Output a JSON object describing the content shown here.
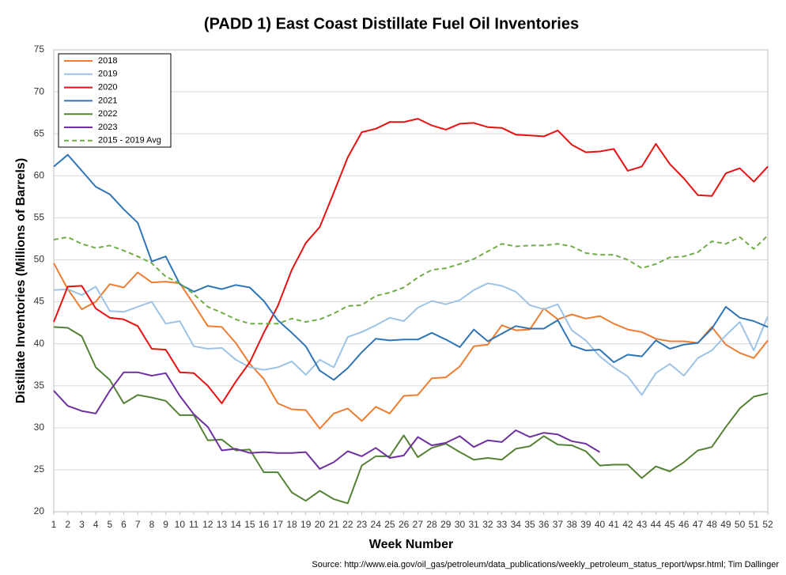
{
  "chart_data": {
    "type": "line",
    "title": "(PADD 1) East Coast Distillate Fuel Oil Inventories",
    "y_label": "Distillate Inventories (Millions of Barrels)",
    "x_label": "Week Number",
    "source": "Source: http://www.eia.gov/oil_gas/petroleum/data_publications/weekly_petroleum_status_report/wpsr.html; Tim Dallinger",
    "x": [
      1,
      2,
      3,
      4,
      5,
      6,
      7,
      8,
      9,
      10,
      11,
      12,
      13,
      14,
      15,
      16,
      17,
      18,
      19,
      20,
      21,
      22,
      23,
      24,
      25,
      26,
      27,
      28,
      29,
      30,
      31,
      32,
      33,
      34,
      35,
      36,
      37,
      38,
      39,
      40,
      41,
      42,
      43,
      44,
      45,
      46,
      47,
      48,
      49,
      50,
      51,
      52
    ],
    "xlim": [
      1,
      52
    ],
    "xticks": [
      1,
      2,
      3,
      4,
      5,
      6,
      7,
      8,
      9,
      10,
      11,
      12,
      13,
      14,
      15,
      16,
      17,
      18,
      19,
      20,
      21,
      22,
      23,
      24,
      25,
      26,
      27,
      28,
      29,
      30,
      31,
      32,
      33,
      34,
      35,
      36,
      37,
      38,
      39,
      40,
      41,
      42,
      43,
      44,
      45,
      46,
      47,
      48,
      49,
      50,
      51,
      52
    ],
    "ylim": [
      20,
      75
    ],
    "yticks": [
      20,
      25,
      30,
      35,
      40,
      45,
      50,
      55,
      60,
      65,
      70,
      75
    ],
    "grid": true,
    "legend": "upper left",
    "series": [
      {
        "name": "2018",
        "color": "#ed7d31",
        "values": [
          49.6,
          46.5,
          44.1,
          45.0,
          47.1,
          46.7,
          48.5,
          47.3,
          47.4,
          47.2,
          44.7,
          42.1,
          42.0,
          40.1,
          37.6,
          35.8,
          32.9,
          32.2,
          32.1,
          29.9,
          31.7,
          32.3,
          30.8,
          32.5,
          31.7,
          33.8,
          33.9,
          35.9,
          36.0,
          37.3,
          39.7,
          39.9,
          42.2,
          41.6,
          41.7,
          44.2,
          42.9,
          43.5,
          43.0,
          43.3,
          42.4,
          41.7,
          41.4,
          40.6,
          40.3,
          40.3,
          40.1,
          42.0,
          39.9,
          38.9,
          38.3,
          40.4
        ]
      },
      {
        "name": "2019",
        "color": "#9dc3e6",
        "values": [
          46.4,
          46.5,
          45.8,
          46.8,
          43.9,
          43.8,
          44.4,
          45.0,
          42.4,
          42.7,
          39.7,
          39.4,
          39.5,
          38.1,
          37.2,
          36.9,
          37.2,
          37.9,
          36.3,
          38.1,
          37.2,
          40.8,
          41.4,
          42.2,
          43.1,
          42.7,
          44.3,
          45.1,
          44.7,
          45.2,
          46.4,
          47.2,
          46.9,
          46.2,
          44.6,
          44.1,
          44.7,
          41.6,
          40.4,
          38.5,
          37.2,
          36.1,
          33.9,
          36.5,
          37.6,
          36.2,
          38.3,
          39.2,
          41.0,
          42.6,
          39.2,
          43.3
        ]
      },
      {
        "name": "2020",
        "color": "#e81010",
        "values": [
          42.6,
          46.8,
          46.9,
          44.2,
          43.1,
          42.9,
          42.1,
          39.4,
          39.3,
          36.6,
          36.5,
          35.0,
          32.9,
          35.5,
          37.8,
          41.3,
          44.5,
          48.8,
          52.0,
          53.9,
          58.0,
          62.2,
          65.2,
          65.6,
          66.4,
          66.4,
          66.8,
          66.0,
          65.5,
          66.2,
          66.3,
          65.8,
          65.7,
          64.9,
          64.8,
          64.7,
          65.4,
          63.7,
          62.8,
          62.9,
          63.2,
          60.6,
          61.1,
          63.8,
          61.4,
          59.7,
          57.7,
          57.6,
          60.3,
          60.9,
          59.3,
          61.1
        ]
      },
      {
        "name": "2021",
        "color": "#2e75b6",
        "values": [
          61.1,
          62.5,
          60.6,
          58.7,
          57.8,
          56.0,
          54.4,
          49.8,
          50.4,
          47.1,
          46.2,
          46.9,
          46.5,
          47.0,
          46.7,
          45.1,
          42.8,
          41.3,
          39.7,
          36.8,
          35.7,
          37.1,
          39.0,
          40.6,
          40.4,
          40.5,
          40.5,
          41.3,
          40.5,
          39.6,
          41.7,
          40.3,
          41.2,
          42.1,
          41.8,
          41.8,
          42.8,
          39.8,
          39.2,
          39.3,
          37.8,
          38.7,
          38.5,
          40.4,
          39.4,
          39.9,
          40.1,
          41.8,
          44.4,
          43.1,
          42.7,
          42.0
        ]
      },
      {
        "name": "2022",
        "color": "#548235",
        "values": [
          42.0,
          41.9,
          40.9,
          37.2,
          35.7,
          32.9,
          33.9,
          33.6,
          33.2,
          31.5,
          31.5,
          28.5,
          28.6,
          27.3,
          27.4,
          24.7,
          24.7,
          22.3,
          21.3,
          22.5,
          21.5,
          21.0,
          25.5,
          26.6,
          26.6,
          29.1,
          26.5,
          27.6,
          28.1,
          27.1,
          26.2,
          26.4,
          26.2,
          27.5,
          27.8,
          29.0,
          28.0,
          27.9,
          27.2,
          25.5,
          25.6,
          25.6,
          24.0,
          25.4,
          24.8,
          25.9,
          27.3,
          27.7,
          30.1,
          32.3,
          33.7,
          34.1
        ]
      },
      {
        "name": "2023",
        "color": "#7030a0",
        "values": [
          34.4,
          32.6,
          32.0,
          31.7,
          34.4,
          36.6,
          36.6,
          36.2,
          36.5,
          33.8,
          31.6,
          30.1,
          27.3,
          27.5,
          27.0,
          27.1,
          27.0,
          27.0,
          27.1,
          25.1,
          25.9,
          27.2,
          26.6,
          27.6,
          26.4,
          26.7,
          28.9,
          27.9,
          28.2,
          29.0,
          27.7,
          28.5,
          28.3,
          29.7,
          28.9,
          29.4,
          29.2,
          28.4,
          28.1,
          27.1,
          null,
          null,
          null,
          null,
          null,
          null,
          null,
          null,
          null,
          null,
          null,
          null
        ]
      },
      {
        "name": "2015 - 2019 Avg",
        "color": "#70ad47",
        "style": "dashed",
        "values": [
          52.4,
          52.7,
          51.9,
          51.4,
          51.7,
          51.1,
          50.4,
          49.6,
          48.0,
          47.2,
          45.9,
          44.4,
          43.7,
          42.9,
          42.4,
          42.4,
          42.4,
          43.0,
          42.6,
          42.9,
          43.6,
          44.5,
          44.6,
          45.7,
          46.1,
          46.7,
          47.9,
          48.8,
          49.0,
          49.5,
          50.1,
          51.0,
          51.9,
          51.6,
          51.7,
          51.7,
          51.9,
          51.6,
          50.8,
          50.6,
          50.6,
          50.0,
          49.0,
          49.5,
          50.3,
          50.4,
          50.9,
          52.2,
          51.9,
          52.7,
          51.3,
          52.9
        ]
      }
    ]
  }
}
